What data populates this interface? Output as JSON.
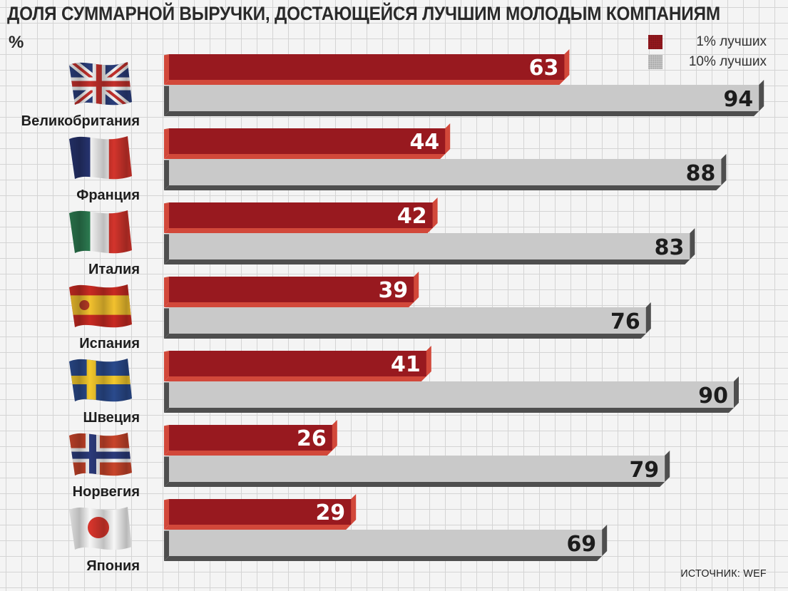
{
  "header": {
    "title": "ДОЛЯ СУММАРНОЙ ВЫРУЧКИ, ДОСТАЮЩЕЙСЯ ЛУЧШИМ МОЛОДЫМ КОМПАНИЯМ",
    "unit": "%"
  },
  "legend": {
    "items": [
      {
        "label": "1% лучших",
        "color": "#98191f"
      },
      {
        "label": "10% лучших",
        "color": "#c9c9c9"
      }
    ]
  },
  "source": "ИСТОЧНИК: WEF",
  "chart_data": {
    "type": "bar",
    "orientation": "horizontal",
    "title": "ДОЛЯ СУММАРНОЙ ВЫРУЧКИ, ДОСТАЮЩЕЙСЯ ЛУЧШИМ МОЛОДЫМ КОМПАНИЯМ",
    "ylabel": "%",
    "categories": [
      "Великобритания",
      "Франция",
      "Италия",
      "Испания",
      "Швеция",
      "Норвегия",
      "Япония"
    ],
    "series": [
      {
        "name": "1% лучших",
        "color": "#98191f",
        "values": [
          63,
          44,
          42,
          39,
          41,
          26,
          29
        ]
      },
      {
        "name": "10% лучших",
        "color": "#c9c9c9",
        "values": [
          94,
          88,
          83,
          76,
          90,
          79,
          69
        ]
      }
    ],
    "xlim": [
      0,
      100
    ],
    "grid": true,
    "legend_position": "top-right",
    "flags": [
      "uk-flag-icon",
      "france-flag-icon",
      "italy-flag-icon",
      "spain-flag-icon",
      "sweden-flag-icon",
      "norway-flag-icon",
      "japan-flag-icon"
    ]
  }
}
